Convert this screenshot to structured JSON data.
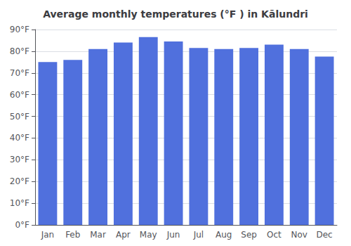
{
  "chart_data": {
    "type": "bar",
    "title": "Average monthly temperatures (°F ) in Kālundri",
    "categories": [
      "Jan",
      "Feb",
      "Mar",
      "Apr",
      "May",
      "Jun",
      "Jul",
      "Aug",
      "Sep",
      "Oct",
      "Nov",
      "Dec"
    ],
    "values": [
      75.0,
      76.0,
      81.0,
      84.0,
      86.5,
      84.5,
      81.5,
      81.0,
      81.5,
      83.0,
      81.0,
      77.5
    ],
    "ylim": [
      0,
      90
    ],
    "yticks": [
      {
        "value": 0,
        "label": "0°F"
      },
      {
        "value": 10,
        "label": "10°F"
      },
      {
        "value": 20,
        "label": "20°F"
      },
      {
        "value": 30,
        "label": "30°F"
      },
      {
        "value": 40,
        "label": "40°F"
      },
      {
        "value": 50,
        "label": "50°F"
      },
      {
        "value": 60,
        "label": "60°F"
      },
      {
        "value": 70,
        "label": "70°F"
      },
      {
        "value": 80,
        "label": "80°F"
      },
      {
        "value": 90,
        "label": "90°F"
      }
    ],
    "grid": true
  }
}
